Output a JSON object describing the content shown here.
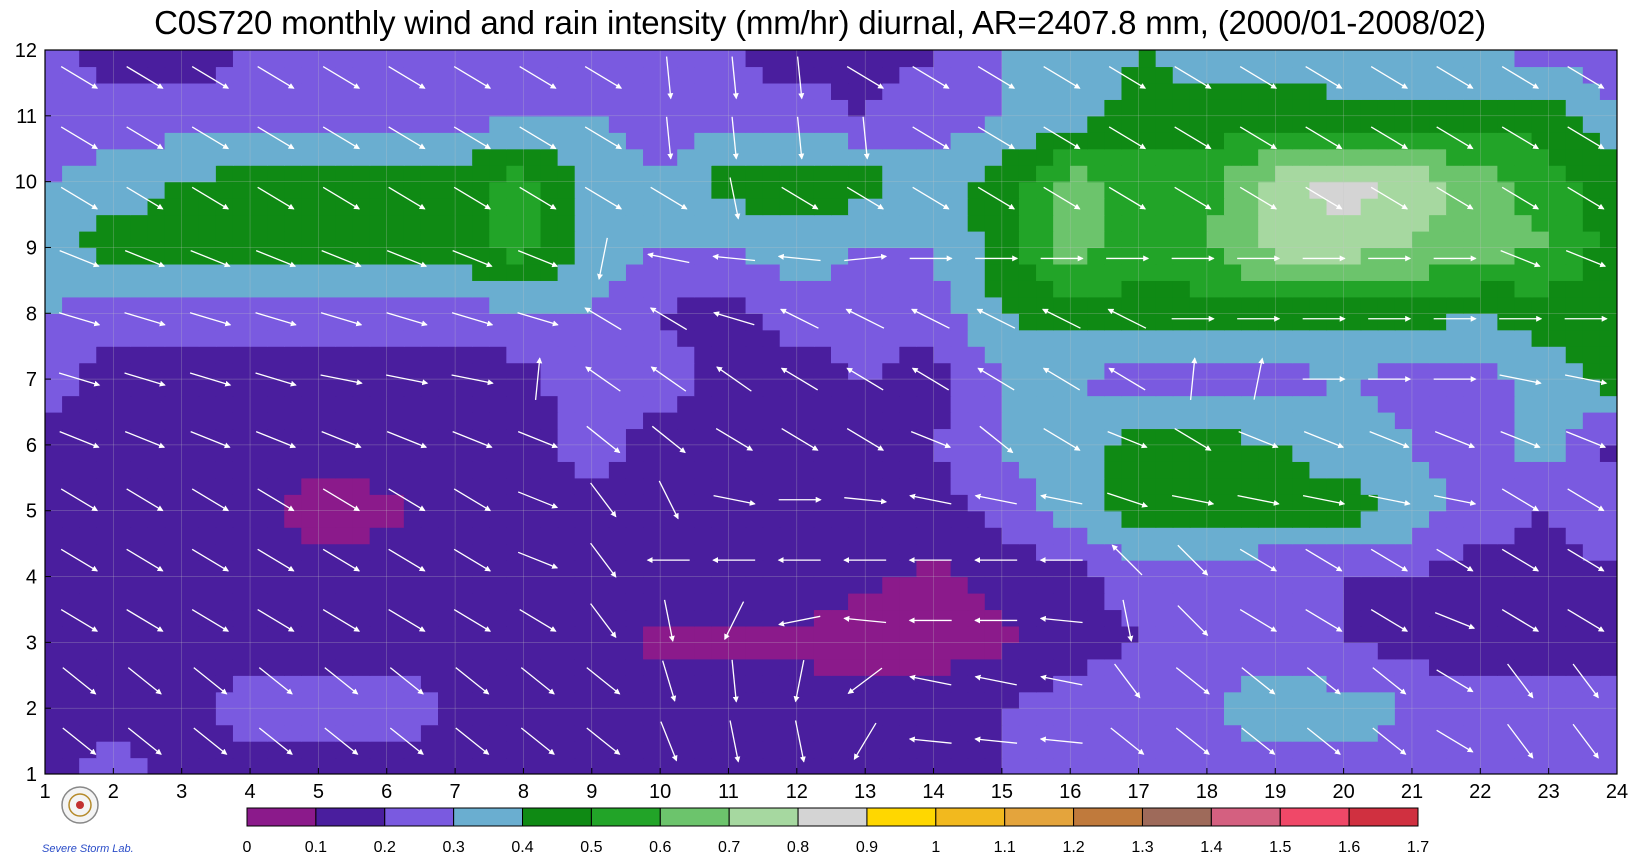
{
  "chart_data": {
    "type": "heatmap",
    "title": "C0S720 monthly wind and rain intensity (mm/hr) diurnal, AR=2407.8 mm, (2000/01-2008/02)",
    "xlabel": "",
    "ylabel": "",
    "xlim": [
      1,
      24
    ],
    "ylim": [
      1,
      12
    ],
    "x_ticks": [
      "1",
      "2",
      "3",
      "4",
      "5",
      "6",
      "7",
      "8",
      "9",
      "10",
      "11",
      "12",
      "13",
      "14",
      "15",
      "16",
      "17",
      "18",
      "19",
      "20",
      "21",
      "22",
      "23",
      "24"
    ],
    "y_ticks": [
      "1",
      "2",
      "3",
      "4",
      "5",
      "6",
      "7",
      "8",
      "9",
      "10",
      "11",
      "12"
    ],
    "grid": true,
    "colorbar": {
      "placement": "bottom",
      "levels": [
        "0",
        "0.1",
        "0.2",
        "0.3",
        "0.4",
        "0.5",
        "0.6",
        "0.7",
        "0.8",
        "0.9",
        "1",
        "1.1",
        "1.2",
        "1.3",
        "1.4",
        "1.5",
        "1.6",
        "1.7"
      ],
      "colors": [
        "#8b1a8b",
        "#4a1e9e",
        "#7a5ae0",
        "#6aaed0",
        "#0f8a14",
        "#22a428",
        "#6cc46c",
        "#a6d8a0",
        "#d4d4d4",
        "#ffd700",
        "#f2b91e",
        "#e4a43c",
        "#c07a3c",
        "#9e6a5a",
        "#d46080",
        "#f04868",
        "#d03040"
      ]
    },
    "rain_grid": [
      [
        0.15,
        0.25,
        0.15,
        0.15,
        0.15,
        0.15,
        0.15,
        0.15,
        0.15,
        0.15,
        0.18,
        0.2,
        0.12,
        0.15,
        0.2,
        0.2,
        0.25,
        0.25,
        0.25,
        0.25,
        0.25,
        0.25,
        0.25,
        0.25
      ],
      [
        0.2,
        0.15,
        0.15,
        0.25,
        0.25,
        0.25,
        0.2,
        0.15,
        0.15,
        0.15,
        0.15,
        0.15,
        0.15,
        0.15,
        0.2,
        0.25,
        0.3,
        0.3,
        0.35,
        0.35,
        0.3,
        0.25,
        0.25,
        0.25
      ],
      [
        0.15,
        0.15,
        0.15,
        0.15,
        0.15,
        0.15,
        0.15,
        0.15,
        0.12,
        0.08,
        0.08,
        0.08,
        0.05,
        0.05,
        0.08,
        0.15,
        0.2,
        0.25,
        0.25,
        0.2,
        0.15,
        0.15,
        0.15,
        0.15
      ],
      [
        0.15,
        0.15,
        0.15,
        0.15,
        0.15,
        0.15,
        0.15,
        0.15,
        0.15,
        0.15,
        0.15,
        0.15,
        0.12,
        0.08,
        0.12,
        0.15,
        0.25,
        0.25,
        0.2,
        0.2,
        0.2,
        0.15,
        0.15,
        0.2
      ],
      [
        0.15,
        0.15,
        0.15,
        0.15,
        0.05,
        0.08,
        0.15,
        0.15,
        0.15,
        0.15,
        0.15,
        0.15,
        0.15,
        0.15,
        0.25,
        0.35,
        0.45,
        0.45,
        0.45,
        0.45,
        0.35,
        0.25,
        0.2,
        0.25
      ],
      [
        0.15,
        0.15,
        0.15,
        0.15,
        0.15,
        0.15,
        0.15,
        0.15,
        0.25,
        0.15,
        0.15,
        0.15,
        0.15,
        0.2,
        0.3,
        0.35,
        0.45,
        0.45,
        0.4,
        0.35,
        0.3,
        0.25,
        0.35,
        0.15
      ],
      [
        0.25,
        0.15,
        0.15,
        0.15,
        0.15,
        0.15,
        0.15,
        0.15,
        0.3,
        0.25,
        0.15,
        0.15,
        0.2,
        0.15,
        0.3,
        0.3,
        0.25,
        0.25,
        0.25,
        0.3,
        0.25,
        0.25,
        0.35,
        0.45
      ],
      [
        0.3,
        0.25,
        0.25,
        0.25,
        0.25,
        0.25,
        0.25,
        0.3,
        0.3,
        0.2,
        0.15,
        0.25,
        0.25,
        0.25,
        0.4,
        0.45,
        0.45,
        0.45,
        0.45,
        0.45,
        0.45,
        0.4,
        0.45,
        0.45
      ],
      [
        0.35,
        0.45,
        0.45,
        0.45,
        0.45,
        0.45,
        0.45,
        0.55,
        0.35,
        0.3,
        0.3,
        0.35,
        0.3,
        0.3,
        0.45,
        0.65,
        0.55,
        0.6,
        0.75,
        0.75,
        0.7,
        0.65,
        0.6,
        0.45
      ],
      [
        0.3,
        0.35,
        0.4,
        0.45,
        0.45,
        0.45,
        0.45,
        0.55,
        0.35,
        0.3,
        0.45,
        0.45,
        0.45,
        0.35,
        0.45,
        0.65,
        0.55,
        0.55,
        0.75,
        0.85,
        0.75,
        0.65,
        0.55,
        0.45
      ],
      [
        0.2,
        0.25,
        0.25,
        0.25,
        0.25,
        0.25,
        0.25,
        0.3,
        0.3,
        0.25,
        0.25,
        0.25,
        0.2,
        0.25,
        0.3,
        0.35,
        0.45,
        0.45,
        0.45,
        0.45,
        0.45,
        0.45,
        0.45,
        0.3
      ],
      [
        0.25,
        0.15,
        0.15,
        0.2,
        0.2,
        0.2,
        0.2,
        0.25,
        0.25,
        0.25,
        0.2,
        0.15,
        0.15,
        0.2,
        0.3,
        0.3,
        0.4,
        0.35,
        0.35,
        0.3,
        0.3,
        0.3,
        0.25,
        0.25
      ]
    ],
    "wind_grid_note": "",
    "wind_u": [
      [
        1,
        1,
        1,
        1,
        1,
        1,
        1,
        1,
        1,
        0.4,
        0.2,
        0.2,
        -0.6,
        -1,
        -1,
        -1,
        1,
        1,
        1,
        1,
        1,
        1,
        0.6,
        0.6
      ],
      [
        1,
        1,
        1,
        1,
        1,
        1,
        1,
        1,
        1,
        0.3,
        0.1,
        -0.2,
        -0.8,
        -1,
        -1,
        -1,
        0.6,
        1,
        1,
        1,
        1,
        1,
        0.6,
        0.6
      ],
      [
        1,
        1,
        1,
        1,
        1,
        1,
        1,
        1,
        0.6,
        0.2,
        -0.4,
        -1,
        -1,
        -1,
        -1,
        -1,
        0.2,
        0.8,
        1,
        1,
        1,
        1,
        1,
        1
      ],
      [
        1,
        1,
        1,
        1,
        1,
        1,
        1,
        1,
        0.6,
        -1,
        -1,
        -1,
        -1,
        -1,
        -1,
        -1,
        -0.6,
        0.6,
        1,
        1,
        1,
        1,
        1,
        1
      ],
      [
        1,
        1,
        1,
        1,
        1,
        1,
        1,
        1,
        0.6,
        0.4,
        1,
        1,
        1,
        -1,
        -1,
        -1,
        0.6,
        1,
        1,
        1,
        1,
        1,
        1,
        1
      ],
      [
        1,
        1,
        1,
        1,
        1,
        1,
        1,
        1,
        1,
        1,
        1,
        1,
        1,
        1,
        1,
        1,
        1,
        1,
        1,
        1,
        1,
        1,
        1,
        1
      ],
      [
        1,
        1,
        1,
        1,
        1,
        1,
        1,
        0.1,
        -1,
        -1,
        -1,
        -1,
        -1,
        -1,
        -1,
        -1,
        -1,
        0.1,
        0.2,
        1,
        1,
        1,
        1,
        1
      ],
      [
        1,
        1,
        1,
        1,
        1,
        1,
        1,
        1,
        -1,
        -1,
        -1,
        -1,
        -1,
        -1,
        -1,
        -1,
        -1,
        1,
        1,
        1,
        1,
        1,
        1,
        1
      ],
      [
        1,
        1,
        1,
        1,
        1,
        1,
        1,
        1,
        -0.2,
        -1,
        -1,
        -1,
        1,
        1,
        1,
        1,
        1,
        1,
        1,
        1,
        1,
        1,
        1,
        1
      ],
      [
        1,
        1,
        1,
        1,
        1,
        1,
        1,
        1,
        1,
        1,
        0.2,
        1,
        1,
        1,
        1,
        1,
        1,
        1,
        1,
        1,
        1,
        1,
        1,
        1
      ],
      [
        1,
        1,
        1,
        1,
        1,
        1,
        1,
        1,
        1,
        0.1,
        0.1,
        0.1,
        0.1,
        1,
        1,
        1,
        1,
        1,
        1,
        1,
        1,
        1,
        1,
        1
      ],
      [
        1,
        1,
        1,
        1,
        1,
        1,
        1,
        1,
        1,
        0.1,
        0.1,
        0.1,
        1,
        1,
        1,
        1,
        1,
        1,
        1,
        1,
        1,
        1,
        1,
        1
      ]
    ],
    "wind_v": [
      [
        -0.8,
        -0.8,
        -0.8,
        -0.8,
        -0.8,
        -0.8,
        -0.8,
        -0.8,
        -0.8,
        -1,
        -1,
        -1,
        -1,
        0.1,
        0.1,
        0.1,
        -0.8,
        -0.8,
        -0.8,
        -0.8,
        -0.8,
        -0.6,
        -0.8,
        -0.8
      ],
      [
        -0.8,
        -0.8,
        -0.8,
        -0.8,
        -0.8,
        -0.8,
        -0.8,
        -0.8,
        -0.8,
        -1,
        -1,
        -1,
        -0.6,
        0.2,
        0.2,
        0.2,
        -0.8,
        -0.8,
        -0.8,
        -0.8,
        -0.8,
        -0.6,
        -0.8,
        -0.8
      ],
      [
        -0.6,
        -0.6,
        -0.6,
        -0.6,
        -0.6,
        -0.6,
        -0.6,
        -0.6,
        -0.8,
        -1,
        -0.8,
        -0.2,
        0.1,
        0,
        0,
        0.1,
        -1,
        -0.8,
        -0.6,
        -0.6,
        -0.6,
        -0.4,
        -0.6,
        -0.6
      ],
      [
        -0.6,
        -0.6,
        -0.6,
        -0.6,
        -0.6,
        -0.6,
        -0.6,
        -0.4,
        -0.8,
        0,
        0,
        0,
        0,
        0,
        0,
        0,
        0.6,
        -0.6,
        -0.6,
        -0.6,
        -0.6,
        -0.6,
        -0.6,
        -0.6
      ],
      [
        -0.6,
        -0.6,
        -0.6,
        -0.6,
        -0.6,
        -0.6,
        -0.6,
        -0.4,
        -0.8,
        -0.8,
        -0.2,
        0,
        -0.1,
        0.2,
        0.2,
        0.2,
        -0.2,
        -0.2,
        -0.2,
        -0.2,
        -0.2,
        -0.2,
        -0.6,
        -0.6
      ],
      [
        -0.4,
        -0.4,
        -0.4,
        -0.4,
        -0.4,
        -0.4,
        -0.4,
        -0.4,
        -0.8,
        -0.8,
        -0.6,
        -0.6,
        -0.6,
        -0.4,
        -0.8,
        -0.6,
        -0.4,
        -0.6,
        -0.4,
        -0.4,
        -0.4,
        -0.4,
        -0.4,
        -0.4
      ],
      [
        -0.3,
        -0.3,
        -0.3,
        -0.3,
        -0.2,
        -0.2,
        -0.2,
        1,
        0.7,
        0.7,
        0.7,
        0.6,
        0.6,
        0.6,
        0.6,
        0.6,
        0.6,
        1,
        1,
        0,
        0,
        0,
        -0.2,
        -0.2
      ],
      [
        -0.3,
        -0.3,
        -0.3,
        -0.3,
        -0.3,
        -0.3,
        -0.3,
        -0.3,
        0.6,
        0.6,
        0.3,
        0.5,
        0.5,
        0.5,
        0.5,
        0.5,
        0.5,
        0,
        0,
        0,
        0,
        0,
        0,
        0
      ],
      [
        -0.4,
        -0.4,
        -0.4,
        -0.4,
        -0.4,
        -0.4,
        -0.4,
        -0.4,
        -1,
        0.2,
        0.1,
        0.1,
        0.1,
        0,
        0,
        0,
        0,
        0,
        0,
        0,
        0,
        0,
        -0.4,
        -0.4
      ],
      [
        -0.6,
        -0.6,
        -0.6,
        -0.6,
        -0.6,
        -0.6,
        -0.6,
        -0.6,
        -0.6,
        -0.6,
        -1,
        -0.6,
        -0.6,
        -0.6,
        -0.6,
        -0.6,
        -0.6,
        -0.6,
        -0.6,
        -0.6,
        -0.6,
        -0.6,
        -0.6,
        -0.6
      ],
      [
        -0.6,
        -0.6,
        -0.6,
        -0.6,
        -0.6,
        -0.6,
        -0.6,
        -0.6,
        -0.6,
        -1,
        -1,
        -1,
        -1,
        -0.6,
        -0.6,
        -0.6,
        -0.6,
        -0.6,
        -0.6,
        -0.6,
        -0.6,
        -0.6,
        -0.6,
        -0.6
      ],
      [
        -0.6,
        -0.6,
        -0.6,
        -0.6,
        -0.6,
        -0.6,
        -0.6,
        -0.6,
        -0.6,
        -1,
        -1,
        -1,
        -0.6,
        -0.6,
        -0.6,
        -0.6,
        -0.6,
        -0.6,
        -0.6,
        -0.6,
        -0.6,
        -0.6,
        -0.6,
        -0.6
      ]
    ]
  },
  "logo": {
    "lab_text": "Severe Storm Lab."
  }
}
